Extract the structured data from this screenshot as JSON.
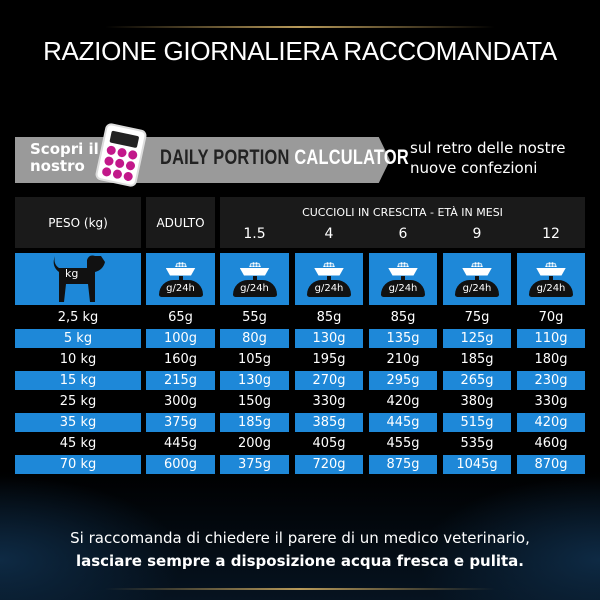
{
  "title": "RAZIONE GIORNALIERA RACCOMANDATA",
  "banner": {
    "scopri": "Scopri il nostro",
    "dpc_a": "DAILY PORTION",
    "dpc_b": "CALCULATOR",
    "retro": "sul retro delle nostre nuove confezioni",
    "calculator_color": "#c2188a"
  },
  "table": {
    "headers": {
      "peso": "PESO (kg)",
      "adulto": "ADULTO",
      "cuccioli": "CUCCIOLI IN CRESCITA - ETÀ IN MESI",
      "months": [
        "1.5",
        "4",
        "6",
        "9",
        "12"
      ]
    },
    "icon_row": {
      "dog_label": "kg",
      "unit": "g/24h"
    },
    "rows": [
      [
        "2,5 kg",
        "65g",
        "55g",
        "85g",
        "85g",
        "75g",
        "70g"
      ],
      [
        "5 kg",
        "100g",
        "80g",
        "130g",
        "135g",
        "125g",
        "110g"
      ],
      [
        "10 kg",
        "160g",
        "105g",
        "195g",
        "210g",
        "185g",
        "180g"
      ],
      [
        "15 kg",
        "215g",
        "130g",
        "270g",
        "295g",
        "265g",
        "230g"
      ],
      [
        "25 kg",
        "300g",
        "150g",
        "330g",
        "420g",
        "380g",
        "330g"
      ],
      [
        "35 kg",
        "375g",
        "185g",
        "385g",
        "445g",
        "515g",
        "420g"
      ],
      [
        "45 kg",
        "445g",
        "200g",
        "405g",
        "455g",
        "535g",
        "460g"
      ],
      [
        "70 kg",
        "600g",
        "375g",
        "720g",
        "875g",
        "1045g",
        "870g"
      ]
    ],
    "accent": "#1e88d8"
  },
  "footer": {
    "line1": "Si raccomanda di chiedere il parere di un medico veterinario,",
    "line2": "lasciare sempre a disposizione acqua fresca e pulita."
  }
}
